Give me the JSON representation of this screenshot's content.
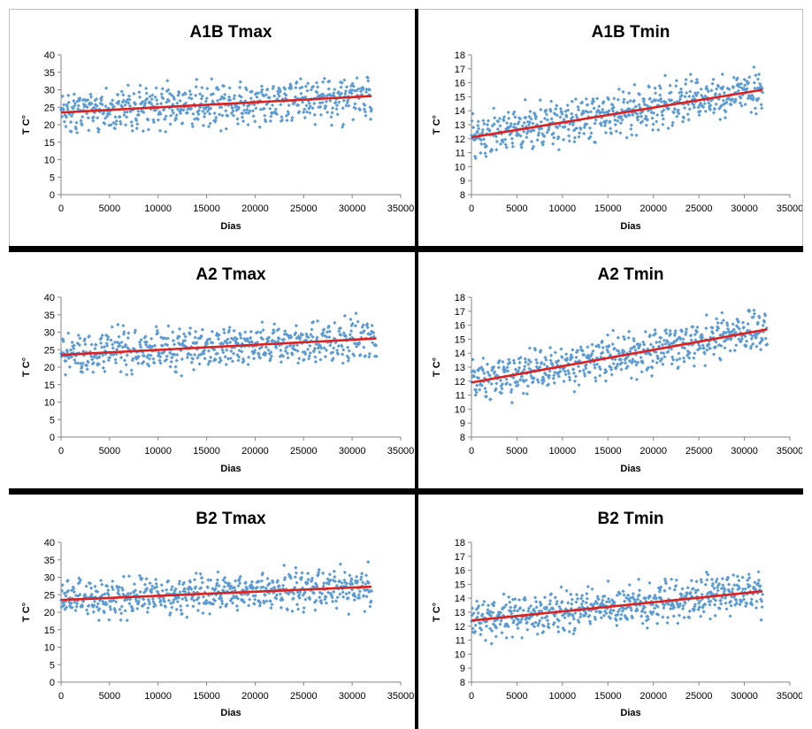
{
  "chart_data": [
    {
      "type": "scatter",
      "title": "A1B Tmax",
      "xlabel": "Dias",
      "ylabel": "T C°",
      "xlim": [
        0,
        35000
      ],
      "ylim": [
        0,
        40
      ],
      "xticks": [
        0,
        5000,
        10000,
        15000,
        20000,
        25000,
        30000,
        35000
      ],
      "yticks": [
        0,
        5,
        10,
        15,
        20,
        25,
        30,
        35,
        40
      ],
      "scatter_color": "#5b9bd5",
      "trend_color": "#e0201c",
      "trend": {
        "x": [
          0,
          32000
        ],
        "y": [
          23.5,
          28.2
        ]
      },
      "scatter": {
        "n": 640,
        "x_max": 32000,
        "y_start": 23.5,
        "y_end": 28.2,
        "spread_start": 4.8,
        "spread_end": 5.4,
        "min": 17.5,
        "max": 37.5
      }
    },
    {
      "type": "scatter",
      "title": "A1B Tmin",
      "xlabel": "Dias",
      "ylabel": "T C°",
      "xlim": [
        0,
        35000
      ],
      "ylim": [
        8,
        18
      ],
      "xticks": [
        0,
        5000,
        10000,
        15000,
        20000,
        25000,
        30000,
        35000
      ],
      "yticks": [
        8,
        9,
        10,
        11,
        12,
        13,
        14,
        15,
        16,
        17,
        18
      ],
      "scatter_color": "#5b9bd5",
      "trend_color": "#e0201c",
      "trend": {
        "x": [
          0,
          32000
        ],
        "y": [
          12.1,
          15.5
        ]
      },
      "scatter": {
        "n": 640,
        "x_max": 32000,
        "y_start": 12.1,
        "y_end": 15.5,
        "spread_start": 1.2,
        "spread_end": 1.4,
        "min": 10.0,
        "max": 17.2
      }
    },
    {
      "type": "scatter",
      "title": "A2 Tmax",
      "xlabel": "Dias",
      "ylabel": "T C°",
      "xlim": [
        0,
        35000
      ],
      "ylim": [
        0,
        40
      ],
      "xticks": [
        0,
        5000,
        10000,
        15000,
        20000,
        25000,
        30000,
        35000
      ],
      "yticks": [
        0,
        5,
        10,
        15,
        20,
        25,
        30,
        35,
        40
      ],
      "scatter_color": "#5b9bd5",
      "trend_color": "#e0201c",
      "trend": {
        "x": [
          0,
          32500
        ],
        "y": [
          23.5,
          28.2
        ]
      },
      "scatter": {
        "n": 650,
        "x_max": 32500,
        "y_start": 23.5,
        "y_end": 28.2,
        "spread_start": 4.8,
        "spread_end": 5.0,
        "min": 17.5,
        "max": 37.0
      }
    },
    {
      "type": "scatter",
      "title": "A2 Tmin",
      "xlabel": "Dias",
      "ylabel": "T C°",
      "xlim": [
        0,
        35000
      ],
      "ylim": [
        8,
        18
      ],
      "xticks": [
        0,
        5000,
        10000,
        15000,
        20000,
        25000,
        30000,
        35000
      ],
      "yticks": [
        8,
        9,
        10,
        11,
        12,
        13,
        14,
        15,
        16,
        17,
        18
      ],
      "scatter_color": "#5b9bd5",
      "trend_color": "#e0201c",
      "trend": {
        "x": [
          0,
          32500
        ],
        "y": [
          11.9,
          15.7
        ]
      },
      "scatter": {
        "n": 650,
        "x_max": 32500,
        "y_start": 11.9,
        "y_end": 15.7,
        "spread_start": 1.2,
        "spread_end": 1.2,
        "min": 10.0,
        "max": 17.5
      }
    },
    {
      "type": "scatter",
      "title": "B2 Tmax",
      "xlabel": "Dias",
      "ylabel": "T C°",
      "xlim": [
        0,
        35000
      ],
      "ylim": [
        0,
        40
      ],
      "xticks": [
        0,
        5000,
        10000,
        15000,
        20000,
        25000,
        30000,
        35000
      ],
      "yticks": [
        0,
        5,
        10,
        15,
        20,
        25,
        30,
        35,
        40
      ],
      "scatter_color": "#5b9bd5",
      "trend_color": "#e0201c",
      "trend": {
        "x": [
          0,
          32000
        ],
        "y": [
          23.5,
          27.3
        ]
      },
      "scatter": {
        "n": 640,
        "x_max": 32000,
        "y_start": 23.5,
        "y_end": 27.3,
        "spread_start": 4.8,
        "spread_end": 4.6,
        "min": 17.5,
        "max": 37.0
      }
    },
    {
      "type": "scatter",
      "title": "B2 Tmin",
      "xlabel": "Dias",
      "ylabel": "T C°",
      "xlim": [
        0,
        35000
      ],
      "ylim": [
        8,
        18
      ],
      "xticks": [
        0,
        5000,
        10000,
        15000,
        20000,
        25000,
        30000,
        35000
      ],
      "yticks": [
        8,
        9,
        10,
        11,
        12,
        13,
        14,
        15,
        16,
        17,
        18
      ],
      "scatter_color": "#5b9bd5",
      "trend_color": "#e0201c",
      "trend": {
        "x": [
          0,
          32000
        ],
        "y": [
          12.4,
          14.5
        ]
      },
      "scatter": {
        "n": 640,
        "x_max": 32000,
        "y_start": 12.4,
        "y_end": 14.5,
        "spread_start": 1.2,
        "spread_end": 1.2,
        "min": 10.0,
        "max": 16.5
      }
    }
  ]
}
